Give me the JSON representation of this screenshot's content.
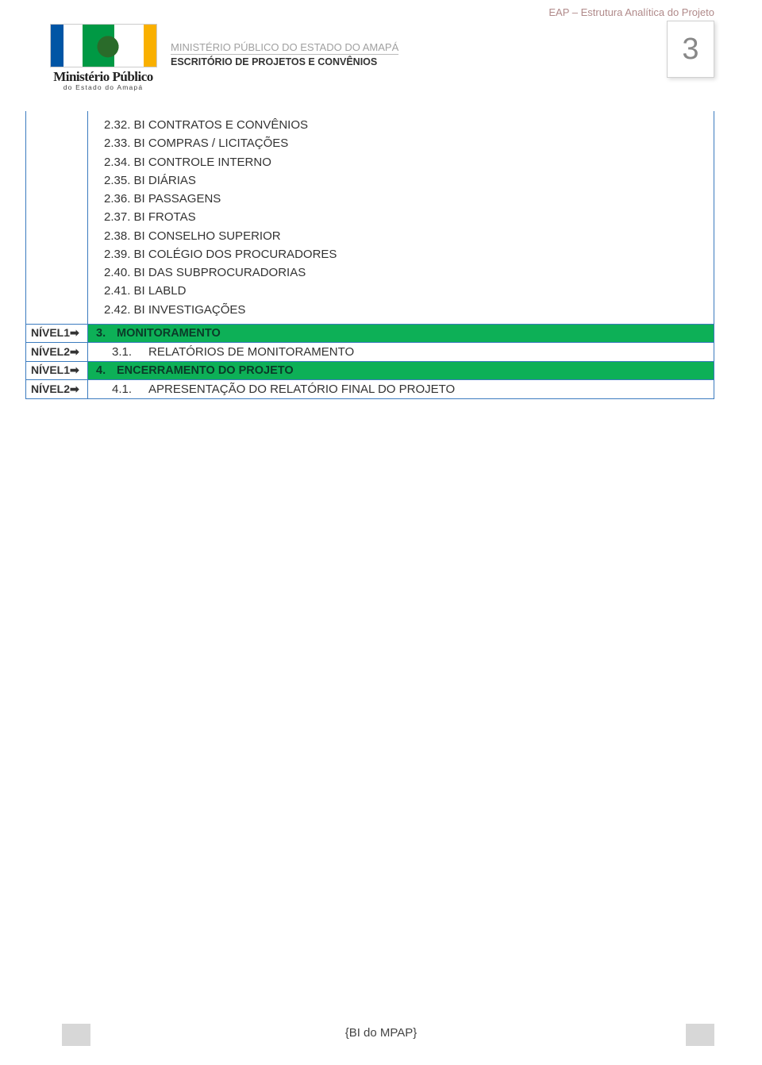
{
  "header": {
    "tag": "EAP – Estrutura Analítica do Projeto",
    "page_number": "3",
    "ministry_line": "MINISTÉRIO PÚBLICO DO ESTADO DO AMAPÁ",
    "office_line": "ESCRITÓRIO DE PROJETOS E CONVÊNIOS",
    "logo_title": "Ministério Público",
    "logo_sub": "do Estado do Amapá"
  },
  "continuation_items": [
    "2.32. BI CONTRATOS E CONVÊNIOS",
    "2.33. BI COMPRAS / LICITAÇÕES",
    "2.34. BI CONTROLE INTERNO",
    "2.35. BI DIÁRIAS",
    "2.36. BI PASSAGENS",
    "2.37. BI FROTAS",
    "2.38. BI CONSELHO SUPERIOR",
    "2.39. BI COLÉGIO DOS PROCURADORES",
    "2.40. BI DAS SUBPROCURADORIAS",
    "2.41. BI LABLD",
    "2.42. BI INVESTIGAÇÕES"
  ],
  "rows": [
    {
      "level": "NÍVEL1",
      "type": "l1",
      "num": "3.",
      "text": "MONITORAMENTO"
    },
    {
      "level": "NÍVEL2",
      "type": "l2",
      "num": "3.1.",
      "text": "RELATÓRIOS DE MONITORAMENTO"
    },
    {
      "level": "NÍVEL1",
      "type": "l1",
      "num": "4.",
      "text": "ENCERRAMENTO DO PROJETO"
    },
    {
      "level": "NÍVEL2",
      "type": "l2",
      "num": "4.1.",
      "text": "APRESENTAÇÃO DO RELATÓRIO FINAL DO PROJETO"
    }
  ],
  "footer": "{BI do MPAP}",
  "colors": {
    "level1_bg": "#0db057",
    "border": "#3b7bbf",
    "header_tag": "#b08a8a"
  }
}
